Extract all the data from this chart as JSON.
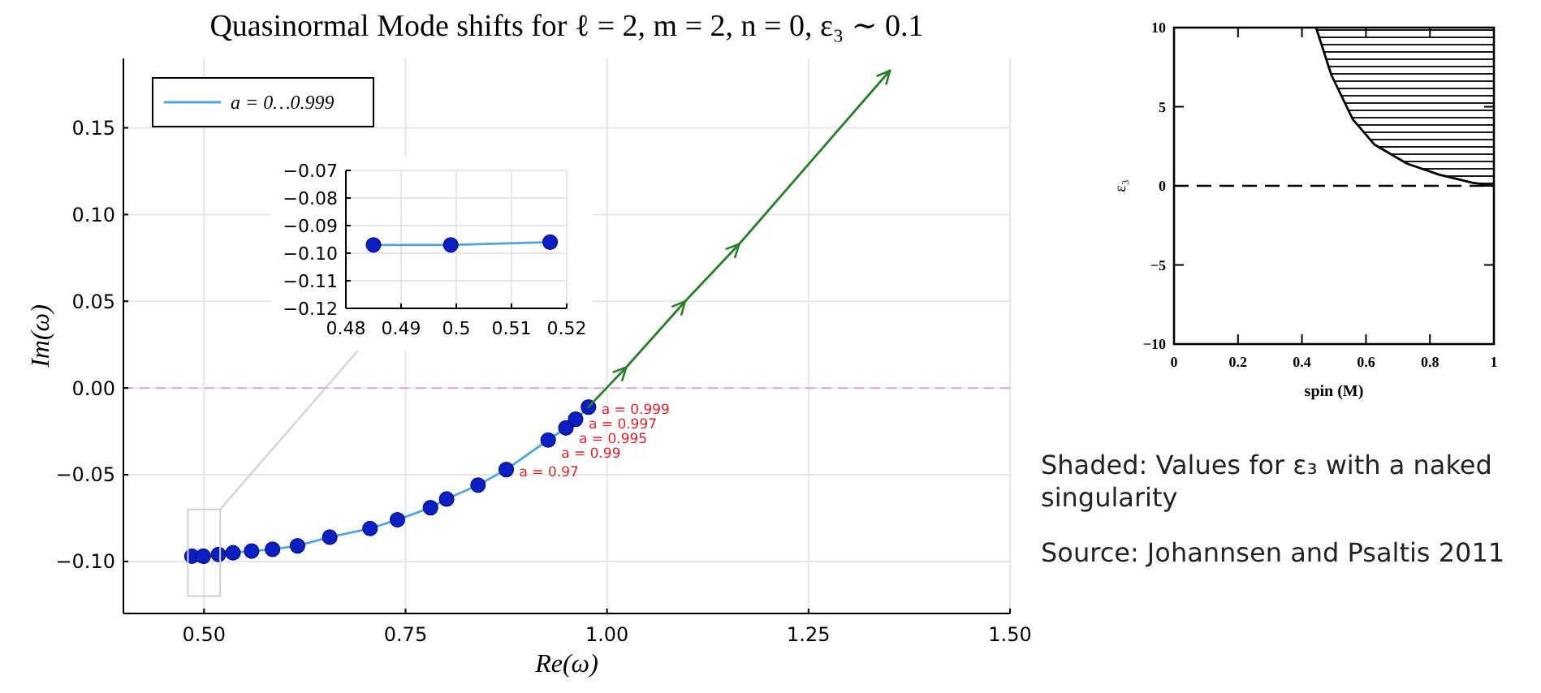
{
  "chart_data": [
    {
      "type": "line",
      "title": "Quasinormal Mode shifts for ℓ = 2, m = 2, n = 0, ε₃ ∼ 0.1",
      "xlabel": "Re(ω)",
      "ylabel": "Im(ω)",
      "xlim": [
        0.4,
        1.5
      ],
      "ylim": [
        -0.13,
        0.19
      ],
      "xticks": [
        {
          "value": 0.5,
          "label": "0.50"
        },
        {
          "value": 0.75,
          "label": "0.75"
        },
        {
          "value": 1.0,
          "label": "1.00"
        },
        {
          "value": 1.25,
          "label": "1.25"
        },
        {
          "value": 1.5,
          "label": "1.50"
        }
      ],
      "yticks": [
        {
          "value": -0.1,
          "label": "−0.10"
        },
        {
          "value": -0.05,
          "label": "−0.05"
        },
        {
          "value": 0,
          "label": "0.00"
        },
        {
          "value": 0.05,
          "label": "0.05"
        },
        {
          "value": 0.1,
          "label": "0.10"
        },
        {
          "value": 0.15,
          "label": "0.15"
        }
      ],
      "grid": true,
      "legend": "top left",
      "series": [
        {
          "name": "a = 0…0.999",
          "type": "line",
          "color": "#4ea6dc",
          "marker": "none",
          "x": [
            0.485,
            0.499,
            0.518,
            0.536,
            0.559,
            0.585,
            0.616,
            0.656,
            0.706,
            0.74,
            0.781,
            0.801,
            0.84,
            0.875,
            0.927,
            0.949,
            0.961,
            0.977
          ],
          "values": [
            -0.097,
            -0.097,
            -0.096,
            -0.095,
            -0.094,
            -0.093,
            -0.091,
            -0.086,
            -0.081,
            -0.076,
            -0.069,
            -0.064,
            -0.056,
            -0.047,
            -0.03,
            -0.023,
            -0.018,
            -0.011
          ]
        },
        {
          "type": "scatter",
          "color": "#0b1fc4",
          "marker": "circle",
          "x": [
            0.485,
            0.499,
            0.518,
            0.536,
            0.559,
            0.585,
            0.616,
            0.656,
            0.706,
            0.74,
            0.781,
            0.801,
            0.84,
            0.875,
            0.927,
            0.949,
            0.961,
            0.977
          ],
          "values": [
            -0.097,
            -0.097,
            -0.096,
            -0.095,
            -0.094,
            -0.093,
            -0.091,
            -0.086,
            -0.081,
            -0.076,
            -0.069,
            -0.064,
            -0.056,
            -0.047,
            -0.03,
            -0.023,
            -0.018,
            -0.011
          ]
        },
        {
          "type": "line",
          "color": "#2a7d2a",
          "marker": "none",
          "x": [
            0.977,
            1.024,
            1.097,
            1.164,
            1.351
          ],
          "values": [
            -0.011,
            0.012,
            0.05,
            0.083,
            0.183
          ]
        }
      ],
      "ref_lines": [
        {
          "axis": "y",
          "value": 0,
          "color": "#d9a6d9",
          "line_style": "dashed"
        }
      ],
      "annotations": [
        {
          "text": "a = 0.97",
          "x": 0.875,
          "y": -0.047
        },
        {
          "text": "a = 0.99",
          "x": 0.927,
          "y": -0.03
        },
        {
          "text": "a = 0.995",
          "x": 0.949,
          "y": -0.023
        },
        {
          "text": "a = 0.997",
          "x": 0.961,
          "y": -0.018
        },
        {
          "text": "a = 0.999",
          "x": 0.977,
          "y": -0.011
        }
      ]
    },
    {
      "type": "line",
      "xlim": [
        0.48,
        0.52
      ],
      "ylim": [
        -0.12,
        -0.07
      ],
      "xticks": [
        0.48,
        0.49,
        0.5,
        0.51,
        0.52
      ],
      "yticks": [
        {
          "value": -0.12,
          "label": "−0.12"
        },
        {
          "value": -0.11,
          "label": "−0.11"
        },
        {
          "value": -0.1,
          "label": "−0.10"
        },
        {
          "value": -0.09,
          "label": "−0.09"
        },
        {
          "value": -0.08,
          "label": "−0.08"
        },
        {
          "value": -0.07,
          "label": "−0.07"
        }
      ],
      "grid": true,
      "series": [
        {
          "type": "line",
          "color": "#4ea6dc",
          "marker": "none",
          "x": [
            0.485,
            0.499,
            0.517
          ],
          "values": [
            -0.097,
            -0.097,
            -0.096
          ]
        },
        {
          "type": "scatter",
          "color": "#0b1fc4",
          "marker": "circle",
          "x": [
            0.485,
            0.499,
            0.517
          ],
          "values": [
            -0.097,
            -0.097,
            -0.096
          ]
        }
      ]
    },
    {
      "type": "line",
      "xlabel": "spin (M)",
      "ylabel": "ε₃",
      "xlim": [
        0,
        1
      ],
      "ylim": [
        -10,
        10
      ],
      "xticks": [
        0,
        0.2,
        0.4,
        0.6,
        0.8,
        1
      ],
      "yticks": [
        {
          "value": -10,
          "label": "−10"
        },
        {
          "value": -5,
          "label": "−5"
        },
        0,
        5,
        10
      ],
      "series": [
        {
          "type": "line",
          "color": "#000000",
          "marker": "none",
          "x": [
            0.444,
            0.492,
            0.559,
            0.627,
            0.729,
            0.83,
            0.932,
            1
          ],
          "values": [
            10,
            7.0,
            4.2,
            2.6,
            1.4,
            0.7,
            0.2,
            0
          ],
          "lower": [
            10,
            7.0,
            4.2,
            2.6,
            1.4,
            0.7,
            0.2,
            0
          ],
          "upper": [
            10,
            10,
            10,
            10,
            10,
            10,
            10,
            10
          ]
        }
      ],
      "ref_lines": [
        {
          "axis": "y",
          "value": 0,
          "color": "#000000",
          "line_style": "dashed"
        }
      ],
      "annotations": [
        "Shaded: Values for ε₃ with a naked singularity",
        "Source: Johannsen and Psaltis 2011"
      ]
    }
  ]
}
